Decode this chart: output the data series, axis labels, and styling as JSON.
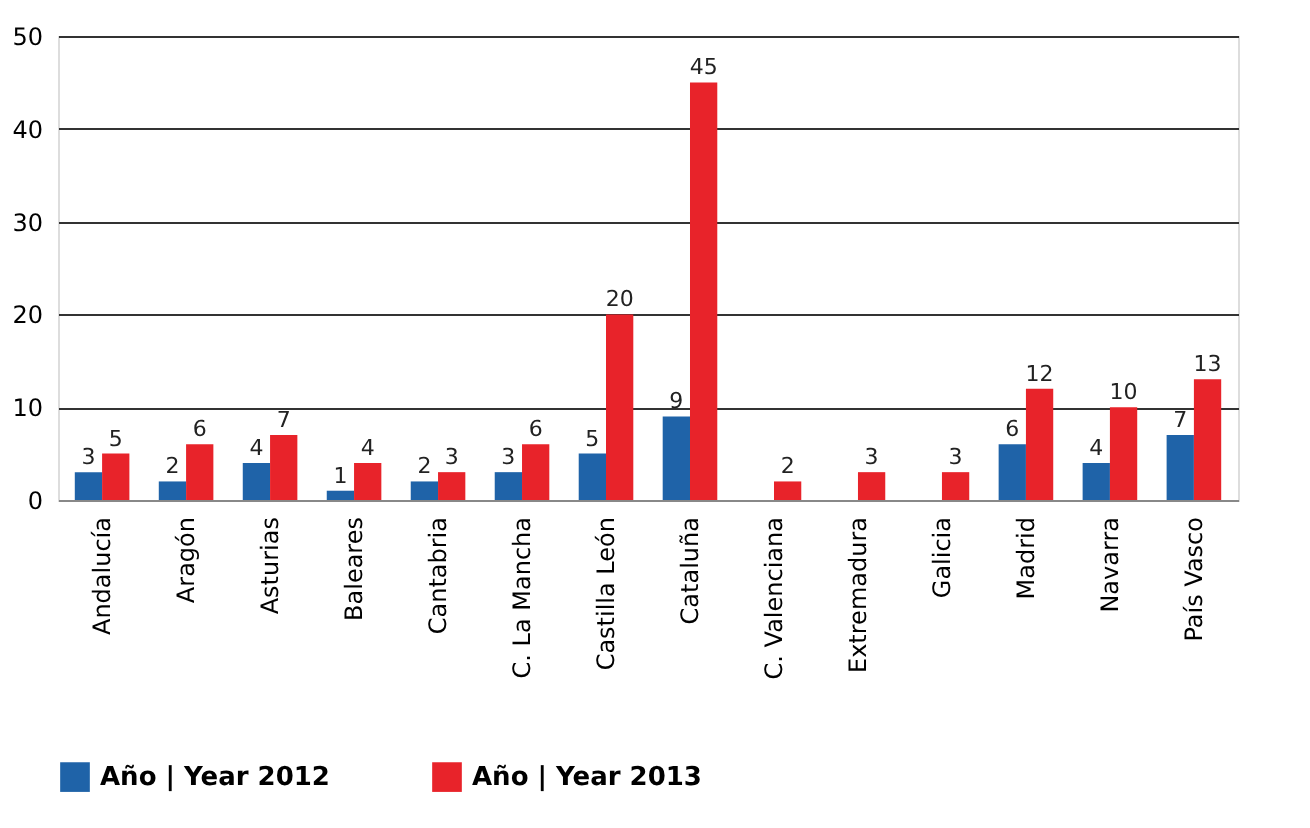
{
  "chart_data": {
    "type": "bar",
    "categories": [
      "Andalucía",
      "Aragón",
      "Asturias",
      "Baleares",
      "Cantabria",
      "C. La Mancha",
      "Castilla León",
      "Cataluña",
      "C. Valenciana",
      "Extremadura",
      "Galicia",
      "Madrid",
      "Navarra",
      "País Vasco"
    ],
    "series": [
      {
        "name": "Año | Year 2012",
        "color": "#1f63a8",
        "values": [
          3,
          2,
          4,
          1,
          2,
          3,
          5,
          9,
          null,
          null,
          null,
          6,
          4,
          7
        ]
      },
      {
        "name": "Año | Year 2013",
        "color": "#e8232a",
        "values": [
          5,
          6,
          7,
          4,
          3,
          6,
          20,
          45,
          2,
          3,
          3,
          12,
          10,
          13
        ]
      }
    ],
    "ylim": [
      0,
      50
    ],
    "yticks": [
      0,
      10,
      20,
      30,
      40,
      50
    ],
    "grid": "y",
    "legend": "bottom",
    "data_labels": true
  }
}
